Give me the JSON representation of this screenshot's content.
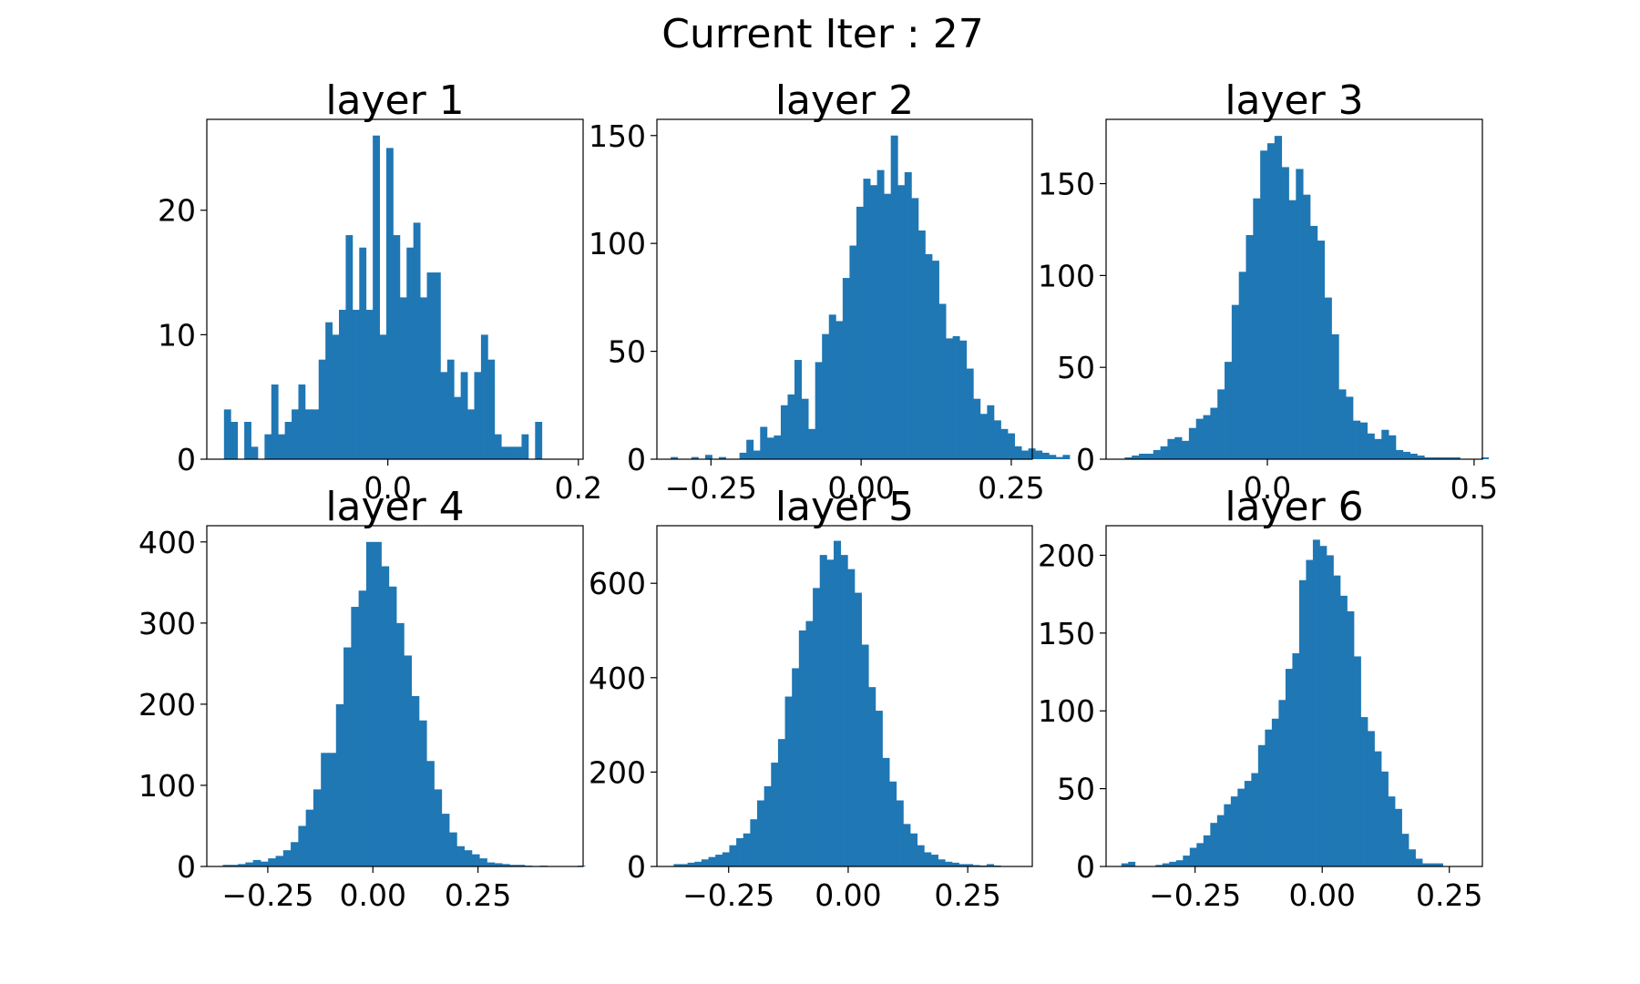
{
  "figure": {
    "suptitle": "Current Iter : 27"
  },
  "colors": {
    "bar": "#1f77b4",
    "axes": "#000000",
    "background": "#ffffff"
  },
  "chart_data": [
    {
      "type": "bar",
      "title": "layer 1",
      "xlim": [
        -0.19,
        0.205
      ],
      "ylim": [
        0,
        27.3
      ],
      "xticks": [
        {
          "v": 0.0,
          "label": "0.0"
        },
        {
          "v": 0.2,
          "label": "0.2"
        }
      ],
      "yticks": [
        {
          "v": 0,
          "label": "0"
        },
        {
          "v": 10,
          "label": "10"
        },
        {
          "v": 20,
          "label": "20"
        }
      ],
      "bin_start": -0.172,
      "bin_width": 0.0071,
      "values": [
        4,
        3,
        0,
        3,
        1,
        0,
        2,
        6,
        2,
        3,
        4,
        6,
        4,
        4,
        8,
        11,
        10,
        12,
        18,
        12,
        17,
        12,
        26,
        10,
        25,
        18,
        13,
        17,
        19,
        13,
        15,
        15,
        7,
        8,
        5,
        7,
        4,
        7,
        10,
        8,
        2,
        1,
        1,
        1,
        2,
        0,
        3
      ]
    },
    {
      "type": "bar",
      "title": "layer 2",
      "xlim": [
        -0.34,
        0.285
      ],
      "ylim": [
        0,
        157.5
      ],
      "xticks": [
        {
          "v": -0.25,
          "label": "−0.25"
        },
        {
          "v": 0.0,
          "label": "0.00"
        },
        {
          "v": 0.25,
          "label": "0.25"
        }
      ],
      "yticks": [
        {
          "v": 0,
          "label": "0"
        },
        {
          "v": 50,
          "label": "50"
        },
        {
          "v": 100,
          "label": "100"
        },
        {
          "v": 150,
          "label": "150"
        }
      ],
      "bin_start": -0.317,
      "bin_width": 0.01145,
      "values": [
        1,
        0,
        0,
        1,
        0,
        2,
        0,
        1,
        0,
        0,
        3,
        9,
        4,
        15,
        10,
        11,
        25,
        30,
        46,
        28,
        14,
        45,
        58,
        67,
        64,
        84,
        99,
        117,
        130,
        127,
        134,
        123,
        150,
        127,
        133,
        121,
        106,
        95,
        92,
        72,
        56,
        57,
        55,
        42,
        28,
        21,
        25,
        18,
        14,
        12,
        6,
        4,
        5,
        4,
        3,
        2,
        1,
        2
      ]
    },
    {
      "type": "bar",
      "title": "layer 3",
      "xlim": [
        -0.39,
        0.52
      ],
      "ylim": [
        0,
        185
      ],
      "xticks": [
        {
          "v": 0.0,
          "label": "0.0"
        },
        {
          "v": 0.5,
          "label": "0.5"
        }
      ],
      "yticks": [
        {
          "v": 0,
          "label": "0"
        },
        {
          "v": 50,
          "label": "50"
        },
        {
          "v": 100,
          "label": "100"
        },
        {
          "v": 150,
          "label": "150"
        }
      ],
      "bin_start": -0.345,
      "bin_width": 0.01725,
      "values": [
        1,
        2,
        3,
        3,
        5,
        7,
        11,
        12,
        10,
        17,
        22,
        24,
        28,
        38,
        53,
        84,
        102,
        122,
        142,
        168,
        172,
        176,
        159,
        141,
        158,
        144,
        127,
        119,
        88,
        68,
        38,
        34,
        21,
        20,
        14,
        11,
        16,
        13,
        5,
        4,
        3,
        2,
        1,
        1,
        1,
        1,
        1,
        0,
        0,
        0,
        1,
        0
      ]
    },
    {
      "type": "bar",
      "title": "layer 4",
      "xlim": [
        -0.395,
        0.5
      ],
      "ylim": [
        0,
        420
      ],
      "xticks": [
        {
          "v": -0.25,
          "label": "−0.25"
        },
        {
          "v": 0.0,
          "label": "0.00"
        },
        {
          "v": 0.25,
          "label": "0.25"
        }
      ],
      "yticks": [
        {
          "v": 0,
          "label": "0"
        },
        {
          "v": 100,
          "label": "100"
        },
        {
          "v": 200,
          "label": "200"
        },
        {
          "v": 300,
          "label": "300"
        },
        {
          "v": 400,
          "label": "400"
        }
      ],
      "bin_start": -0.357,
      "bin_width": 0.01795,
      "values": [
        2,
        2,
        3,
        5,
        8,
        6,
        10,
        13,
        20,
        30,
        50,
        70,
        95,
        140,
        140,
        200,
        270,
        320,
        340,
        400,
        400,
        370,
        345,
        300,
        260,
        210,
        180,
        130,
        95,
        65,
        42,
        25,
        20,
        15,
        10,
        5,
        4,
        3,
        2,
        2,
        1,
        0,
        1,
        0,
        0,
        0,
        0,
        1
      ]
    },
    {
      "type": "bar",
      "title": "layer 5",
      "xlim": [
        -0.4,
        0.385
      ],
      "ylim": [
        0,
        722
      ],
      "xticks": [
        {
          "v": -0.25,
          "label": "−0.25"
        },
        {
          "v": 0.0,
          "label": "0.00"
        },
        {
          "v": 0.25,
          "label": "0.25"
        }
      ],
      "yticks": [
        {
          "v": 0,
          "label": "0"
        },
        {
          "v": 200,
          "label": "200"
        },
        {
          "v": 400,
          "label": "400"
        },
        {
          "v": 600,
          "label": "600"
        }
      ],
      "bin_start": -0.365,
      "bin_width": 0.01455,
      "values": [
        5,
        5,
        8,
        10,
        15,
        20,
        25,
        30,
        45,
        60,
        70,
        100,
        140,
        170,
        220,
        270,
        360,
        420,
        500,
        520,
        590,
        660,
        650,
        690,
        660,
        630,
        580,
        470,
        380,
        330,
        230,
        180,
        140,
        90,
        70,
        45,
        30,
        25,
        15,
        10,
        8,
        5,
        5,
        3,
        2,
        5,
        2
      ]
    },
    {
      "type": "bar",
      "title": "layer 6",
      "xlim": [
        -0.425,
        0.315
      ],
      "ylim": [
        0,
        219
      ],
      "xticks": [
        {
          "v": -0.25,
          "label": "−0.25"
        },
        {
          "v": 0.0,
          "label": "0.00"
        },
        {
          "v": 0.25,
          "label": "0.25"
        }
      ],
      "yticks": [
        {
          "v": 0,
          "label": "0"
        },
        {
          "v": 50,
          "label": "50"
        },
        {
          "v": 100,
          "label": "100"
        },
        {
          "v": 150,
          "label": "150"
        },
        {
          "v": 200,
          "label": "200"
        }
      ],
      "bin_start": -0.395,
      "bin_width": 0.01345,
      "values": [
        2,
        3,
        0,
        0,
        0,
        1,
        2,
        3,
        4,
        7,
        12,
        15,
        20,
        28,
        33,
        40,
        45,
        50,
        55,
        60,
        78,
        88,
        95,
        107,
        127,
        137,
        184,
        197,
        210,
        206,
        200,
        187,
        174,
        164,
        135,
        96,
        87,
        74,
        61,
        45,
        37,
        21,
        11,
        5,
        2,
        2,
        2
      ]
    }
  ]
}
